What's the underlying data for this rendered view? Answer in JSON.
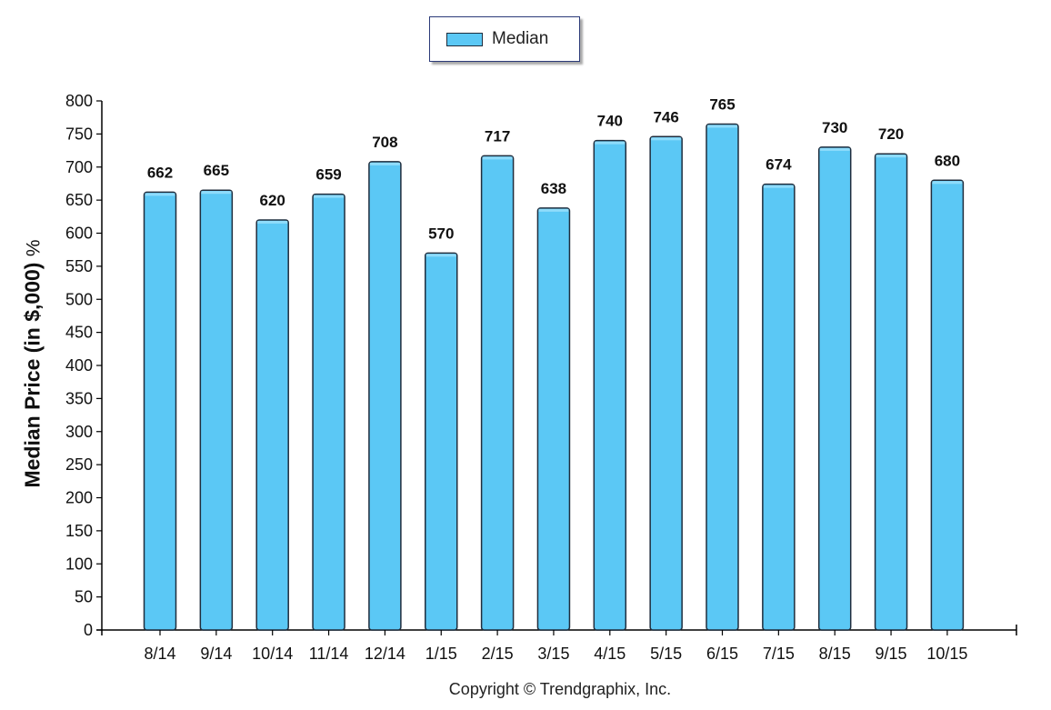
{
  "legend": {
    "label": "Median",
    "color": "#5bc8f5"
  },
  "ylabel": {
    "main": "Median Price (in $,000)",
    "suffix": "%"
  },
  "copyright": "Copyright © Trendgraphix, Inc.",
  "chart_data": {
    "type": "bar",
    "categories": [
      "8/14",
      "9/14",
      "10/14",
      "11/14",
      "12/14",
      "1/15",
      "2/15",
      "3/15",
      "4/15",
      "5/15",
      "6/15",
      "7/15",
      "8/15",
      "9/15",
      "10/15"
    ],
    "series": [
      {
        "name": "Median",
        "values": [
          662,
          665,
          620,
          659,
          708,
          570,
          717,
          638,
          740,
          746,
          765,
          674,
          730,
          720,
          680
        ]
      }
    ],
    "ylim": [
      0,
      800
    ],
    "yticks": [
      0,
      50,
      100,
      150,
      200,
      250,
      300,
      350,
      400,
      450,
      500,
      550,
      600,
      650,
      700,
      750,
      800
    ],
    "ylabel": "Median Price (in $,000) %",
    "xlabel": "",
    "grid": false,
    "legend_position": "top-center",
    "bar_color": "#5bc8f5",
    "bar_border": "#1f2d3d"
  }
}
